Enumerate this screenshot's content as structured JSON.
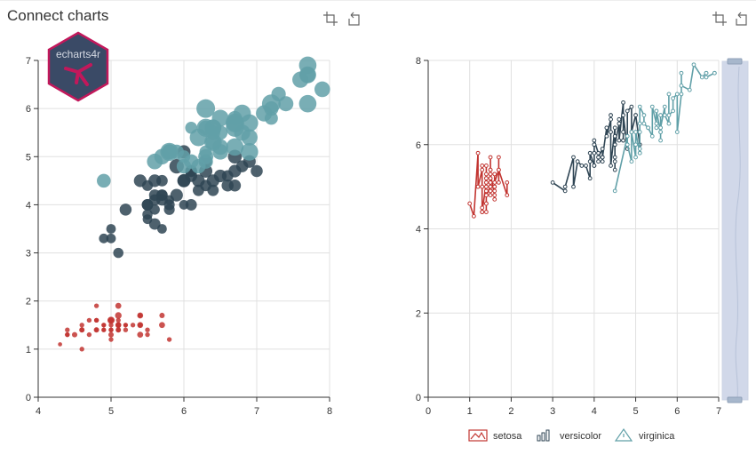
{
  "page": {
    "title": "Connect charts"
  },
  "logo": {
    "text": "echarts4r",
    "color": "#c2185b",
    "bg": "#3a4a66"
  },
  "colors": {
    "setosa": "#c23531",
    "versicolor": "#2f4554",
    "virginica": "#61a0a8"
  },
  "toolbox": {
    "icons": [
      "zoom-icon",
      "restore-icon"
    ]
  },
  "chart_data": [
    {
      "type": "scatter",
      "title": "",
      "xlabel": "",
      "ylabel": "",
      "xlim": [
        4,
        8
      ],
      "ylim": [
        0,
        7
      ],
      "xticks": [
        "4",
        "5",
        "6",
        "7",
        "8"
      ],
      "yticks": [
        "0",
        "1",
        "2",
        "3",
        "4",
        "5",
        "6",
        "7"
      ],
      "grid": true,
      "size_encoding": "petal width",
      "series": [
        {
          "name": "setosa",
          "x": [
            5.1,
            4.9,
            4.7,
            4.6,
            5.0,
            5.4,
            4.6,
            5.0,
            4.4,
            4.9,
            5.4,
            4.8,
            4.8,
            4.3,
            5.8,
            5.7,
            5.4,
            5.1,
            5.7,
            5.1,
            5.4,
            5.1,
            4.6,
            5.1,
            4.8,
            5.0,
            5.0,
            5.2,
            5.2,
            4.7,
            4.8,
            5.4,
            5.2,
            5.5,
            4.9,
            5.0,
            5.5,
            4.9,
            4.4,
            5.1,
            5.0,
            4.5,
            4.4,
            5.0,
            5.1,
            4.8,
            5.1,
            4.6,
            5.3,
            5.0
          ],
          "y": [
            1.4,
            1.4,
            1.3,
            1.5,
            1.4,
            1.7,
            1.4,
            1.5,
            1.4,
            1.5,
            1.5,
            1.6,
            1.4,
            1.1,
            1.2,
            1.5,
            1.3,
            1.4,
            1.7,
            1.5,
            1.7,
            1.5,
            1.0,
            1.7,
            1.9,
            1.6,
            1.6,
            1.5,
            1.4,
            1.6,
            1.6,
            1.5,
            1.5,
            1.4,
            1.5,
            1.2,
            1.3,
            1.4,
            1.3,
            1.5,
            1.3,
            1.3,
            1.3,
            1.6,
            1.9,
            1.4,
            1.6,
            1.4,
            1.5,
            1.4
          ],
          "size": [
            0.2,
            0.2,
            0.2,
            0.2,
            0.2,
            0.4,
            0.3,
            0.2,
            0.2,
            0.1,
            0.2,
            0.2,
            0.1,
            0.1,
            0.2,
            0.4,
            0.4,
            0.3,
            0.3,
            0.3,
            0.2,
            0.4,
            0.2,
            0.5,
            0.2,
            0.2,
            0.4,
            0.2,
            0.2,
            0.2,
            0.2,
            0.4,
            0.1,
            0.2,
            0.2,
            0.2,
            0.2,
            0.1,
            0.2,
            0.2,
            0.3,
            0.3,
            0.2,
            0.6,
            0.4,
            0.3,
            0.2,
            0.2,
            0.2,
            0.2
          ]
        },
        {
          "name": "versicolor",
          "x": [
            7.0,
            6.4,
            6.9,
            5.5,
            6.5,
            5.7,
            6.3,
            4.9,
            6.6,
            5.2,
            5.0,
            5.9,
            6.0,
            6.1,
            5.6,
            6.7,
            5.6,
            5.8,
            6.2,
            5.6,
            5.9,
            6.1,
            6.3,
            6.1,
            6.4,
            6.6,
            6.8,
            6.7,
            6.0,
            5.7,
            5.5,
            5.5,
            5.8,
            6.0,
            5.4,
            6.0,
            6.7,
            6.3,
            5.6,
            5.5,
            5.5,
            6.1,
            5.8,
            5.0,
            5.6,
            5.7,
            5.7,
            6.2,
            5.1,
            5.7
          ],
          "y": [
            4.7,
            4.5,
            4.9,
            4.0,
            4.6,
            4.5,
            4.7,
            3.3,
            4.6,
            3.9,
            3.5,
            4.2,
            4.0,
            4.7,
            3.6,
            4.4,
            4.5,
            4.1,
            4.5,
            3.9,
            4.8,
            4.0,
            4.9,
            4.7,
            4.3,
            4.4,
            4.8,
            5.0,
            4.5,
            3.5,
            3.8,
            3.7,
            3.9,
            5.1,
            4.5,
            4.5,
            4.7,
            4.4,
            4.1,
            4.0,
            4.4,
            4.6,
            4.0,
            3.3,
            4.2,
            4.2,
            4.2,
            4.3,
            3.0,
            4.1
          ],
          "size": [
            1.4,
            1.5,
            1.5,
            1.3,
            1.5,
            1.3,
            1.6,
            1.0,
            1.3,
            1.4,
            1.0,
            1.5,
            1.0,
            1.4,
            1.3,
            1.4,
            1.5,
            1.0,
            1.5,
            1.1,
            1.8,
            1.3,
            1.5,
            1.2,
            1.3,
            1.4,
            1.4,
            1.7,
            1.5,
            1.0,
            1.1,
            1.0,
            1.2,
            1.6,
            1.5,
            1.6,
            1.5,
            1.3,
            1.3,
            1.3,
            1.2,
            1.4,
            1.2,
            1.0,
            1.3,
            1.2,
            1.3,
            1.3,
            1.1,
            1.3
          ]
        },
        {
          "name": "virginica",
          "x": [
            6.3,
            5.8,
            7.1,
            6.3,
            6.5,
            7.6,
            4.9,
            7.3,
            6.7,
            7.2,
            6.5,
            6.4,
            6.8,
            5.7,
            5.8,
            6.4,
            6.5,
            7.7,
            7.7,
            6.0,
            6.9,
            5.6,
            7.7,
            6.3,
            6.7,
            7.2,
            6.2,
            6.1,
            6.4,
            7.2,
            7.4,
            7.9,
            6.4,
            6.3,
            6.1,
            7.7,
            6.3,
            6.4,
            6.0,
            6.9,
            6.7,
            6.9,
            5.8,
            6.8,
            6.7,
            6.7,
            6.3,
            6.5,
            6.2,
            5.9
          ],
          "y": [
            6.0,
            5.1,
            5.9,
            5.6,
            5.8,
            6.6,
            4.5,
            6.3,
            5.8,
            6.1,
            5.1,
            5.3,
            5.5,
            5.0,
            5.1,
            5.3,
            5.5,
            6.7,
            6.9,
            5.0,
            5.7,
            4.9,
            6.7,
            4.9,
            5.7,
            6.0,
            4.8,
            4.9,
            5.6,
            5.8,
            6.1,
            6.4,
            5.6,
            5.1,
            5.6,
            6.1,
            5.6,
            5.5,
            4.8,
            5.4,
            5.6,
            5.1,
            5.1,
            5.9,
            5.7,
            5.2,
            5.0,
            5.2,
            5.4,
            5.1
          ],
          "size": [
            2.5,
            1.9,
            2.1,
            1.8,
            2.2,
            2.1,
            1.7,
            1.8,
            1.8,
            2.5,
            2.0,
            1.9,
            2.1,
            2.0,
            2.4,
            2.3,
            1.8,
            2.2,
            2.3,
            1.5,
            2.3,
            2.0,
            2.0,
            1.8,
            2.1,
            1.8,
            1.8,
            1.8,
            2.1,
            1.6,
            1.9,
            2.0,
            2.2,
            1.5,
            1.4,
            2.3,
            2.4,
            1.8,
            1.8,
            2.1,
            2.4,
            2.3,
            1.9,
            2.3,
            2.5,
            2.3,
            1.9,
            2.0,
            2.3,
            1.8
          ]
        }
      ]
    },
    {
      "type": "line",
      "title": "",
      "xlabel": "",
      "ylabel": "",
      "xlim": [
        0,
        7
      ],
      "ylim": [
        0,
        8
      ],
      "xticks": [
        "0",
        "1",
        "2",
        "3",
        "4",
        "5",
        "6",
        "7"
      ],
      "yticks": [
        "0",
        "2",
        "4",
        "6",
        "8"
      ],
      "grid": true,
      "legend": {
        "position": "bottom-center",
        "items": [
          "setosa",
          "versicolor",
          "virginica"
        ]
      },
      "datazoom": {
        "orientation": "vertical",
        "range": [
          0,
          100
        ]
      },
      "series": [
        {
          "name": "setosa",
          "x": [
            1.0,
            1.1,
            1.2,
            1.2,
            1.3,
            1.3,
            1.3,
            1.3,
            1.3,
            1.3,
            1.3,
            1.4,
            1.4,
            1.4,
            1.4,
            1.4,
            1.4,
            1.4,
            1.4,
            1.4,
            1.4,
            1.4,
            1.4,
            1.4,
            1.5,
            1.5,
            1.5,
            1.5,
            1.5,
            1.5,
            1.5,
            1.5,
            1.5,
            1.5,
            1.5,
            1.5,
            1.5,
            1.6,
            1.6,
            1.6,
            1.6,
            1.6,
            1.6,
            1.6,
            1.7,
            1.7,
            1.7,
            1.7,
            1.9,
            1.9
          ],
          "y": [
            4.6,
            4.3,
            5.8,
            5.0,
            5.4,
            4.4,
            5.5,
            4.4,
            5.0,
            4.5,
            4.4,
            5.1,
            4.9,
            5.0,
            4.6,
            5.2,
            5.5,
            4.8,
            5.1,
            4.6,
            5.3,
            4.4,
            5.2,
            4.8,
            5.0,
            5.4,
            4.9,
            5.1,
            4.8,
            5.0,
            5.7,
            5.4,
            5.2,
            5.2,
            4.9,
            5.1,
            5.3,
            4.8,
            5.0,
            4.7,
            5.0,
            5.3,
            4.9,
            5.1,
            5.4,
            5.7,
            5.1,
            5.4,
            4.8,
            5.1
          ]
        },
        {
          "name": "versicolor",
          "x": [
            3.0,
            3.3,
            3.3,
            3.5,
            3.5,
            3.6,
            3.7,
            3.8,
            3.9,
            3.9,
            3.9,
            4.0,
            4.0,
            4.0,
            4.0,
            4.0,
            4.1,
            4.1,
            4.1,
            4.2,
            4.2,
            4.2,
            4.2,
            4.3,
            4.3,
            4.4,
            4.4,
            4.4,
            4.4,
            4.5,
            4.5,
            4.5,
            4.5,
            4.5,
            4.5,
            4.5,
            4.6,
            4.6,
            4.6,
            4.7,
            4.7,
            4.7,
            4.7,
            4.7,
            4.8,
            4.8,
            4.9,
            4.9,
            5.0,
            5.1
          ],
          "y": [
            5.1,
            4.9,
            5.0,
            5.7,
            5.0,
            5.6,
            5.5,
            5.5,
            5.2,
            5.6,
            5.8,
            5.5,
            5.5,
            5.8,
            6.0,
            6.1,
            5.8,
            5.6,
            5.7,
            5.9,
            5.7,
            5.6,
            5.7,
            6.4,
            6.2,
            6.6,
            6.7,
            6.3,
            5.5,
            6.4,
            5.7,
            6.2,
            5.6,
            6.0,
            5.4,
            6.0,
            6.5,
            6.6,
            6.1,
            7.0,
            6.3,
            6.1,
            6.1,
            6.7,
            5.9,
            6.8,
            6.9,
            6.3,
            6.7,
            6.0
          ]
        },
        {
          "name": "virginica",
          "x": [
            4.5,
            4.8,
            4.8,
            4.9,
            4.9,
            5.0,
            5.0,
            5.0,
            5.1,
            5.1,
            5.1,
            5.1,
            5.1,
            5.1,
            5.2,
            5.2,
            5.3,
            5.3,
            5.4,
            5.4,
            5.5,
            5.5,
            5.5,
            5.6,
            5.6,
            5.6,
            5.6,
            5.6,
            5.6,
            5.7,
            5.7,
            5.7,
            5.8,
            5.8,
            5.8,
            5.9,
            5.9,
            6.0,
            6.0,
            6.1,
            6.1,
            6.1,
            6.3,
            6.4,
            6.6,
            6.7,
            6.7,
            6.7,
            6.9,
            6.9
          ],
          "y": [
            4.9,
            6.2,
            6.0,
            5.6,
            6.3,
            5.7,
            6.0,
            6.3,
            5.8,
            6.5,
            6.3,
            5.9,
            5.8,
            6.9,
            6.7,
            6.5,
            6.4,
            6.4,
            6.2,
            6.9,
            6.5,
            6.4,
            6.8,
            6.3,
            6.4,
            6.1,
            6.3,
            6.7,
            6.4,
            6.9,
            6.7,
            6.7,
            6.5,
            7.2,
            6.7,
            6.8,
            7.1,
            7.2,
            6.3,
            7.2,
            7.7,
            7.4,
            7.3,
            7.9,
            7.6,
            7.7,
            7.7,
            7.6,
            7.7,
            7.7
          ]
        }
      ]
    }
  ]
}
